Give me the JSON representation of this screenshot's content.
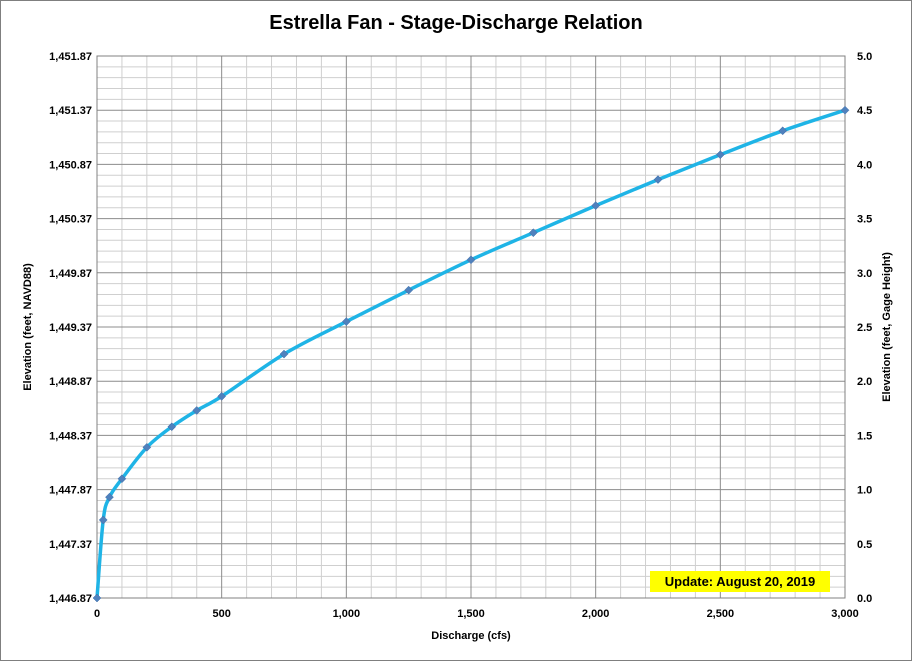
{
  "chart_data": {
    "type": "line",
    "title": "Estrella Fan - Stage-Discharge Relation",
    "xlabel": "Discharge  (cfs)",
    "ylabel_left": "Elevation  (feet, NAVD88)",
    "ylabel_right": "Elevation  (feet, Gage Height)",
    "xlim": [
      0,
      3000
    ],
    "ylim_left": [
      1446.87,
      1451.87
    ],
    "ylim_right": [
      0.0,
      5.0
    ],
    "x_ticks": [
      "0",
      "500",
      "1,000",
      "1,500",
      "2,000",
      "2,500",
      "3,000"
    ],
    "y_left_ticks": [
      "1,446.87",
      "1,447.37",
      "1,447.87",
      "1,448.37",
      "1,448.87",
      "1,449.37",
      "1,449.87",
      "1,450.37",
      "1,450.87",
      "1,451.37",
      "1,451.87"
    ],
    "y_right_ticks": [
      "0.0",
      "0.5",
      "1.0",
      "1.5",
      "2.0",
      "2.5",
      "3.0",
      "3.5",
      "4.0",
      "4.5",
      "5.0"
    ],
    "grid": true,
    "series": [
      {
        "color": "#1fb4e6",
        "marker_color": "#4f81bd",
        "points": [
          [
            0,
            0.0
          ],
          [
            25,
            0.72
          ],
          [
            50,
            0.93
          ],
          [
            100,
            1.1
          ],
          [
            200,
            1.39
          ],
          [
            300,
            1.58
          ],
          [
            400,
            1.73
          ],
          [
            500,
            1.86
          ],
          [
            750,
            2.25
          ],
          [
            1000,
            2.55
          ],
          [
            1250,
            2.84
          ],
          [
            1500,
            3.12
          ],
          [
            1750,
            3.37
          ],
          [
            2000,
            3.62
          ],
          [
            2250,
            3.86
          ],
          [
            2500,
            4.09
          ],
          [
            2750,
            4.31
          ],
          [
            3000,
            4.5
          ]
        ]
      }
    ],
    "annotation": "Update: August 20, 2019"
  }
}
